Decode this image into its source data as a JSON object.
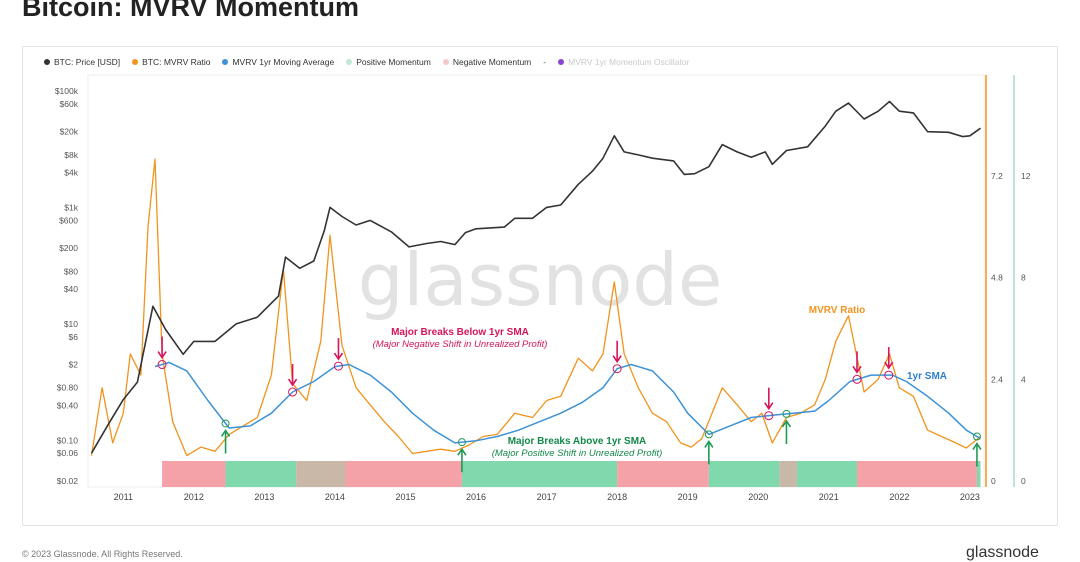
{
  "title": "Bitcoin: MVRV Momentum",
  "legend": [
    {
      "label": "BTC: Price [USD]",
      "color": "#333333",
      "faded": false
    },
    {
      "label": "BTC: MVRV Ratio",
      "color": "#f2931e",
      "faded": false
    },
    {
      "label": "MVRV 1yr Moving Average",
      "color": "#3d92d8",
      "faded": false
    },
    {
      "label": "Positive Momentum",
      "color": "#bfe8d5",
      "faded": false
    },
    {
      "label": "Negative Momentum",
      "color": "#f6c9cd",
      "faded": false
    },
    {
      "label": "-",
      "color": "",
      "faded": false
    },
    {
      "label": "MVRV 1yr Momentum Oscillator",
      "color": "#8a45d6",
      "faded": true
    }
  ],
  "footer": {
    "copyright": "© 2023 Glassnode. All Rights Reserved.",
    "brand": "glassnode"
  },
  "watermark": "glassnode",
  "chart_data": {
    "type": "line",
    "x_ticks": [
      "2011",
      "2012",
      "2013",
      "2014",
      "2015",
      "2016",
      "2017",
      "2018",
      "2019",
      "2020",
      "2021",
      "2022",
      "2023"
    ],
    "y_left_ticks": [
      "$100k",
      "$60k",
      "$20k",
      "$8k",
      "$4k",
      "$1k",
      "$600",
      "$200",
      "$80",
      "$40",
      "$10",
      "$6",
      "$2",
      "$0.80",
      "$0.40",
      "$0.10",
      "$0.06",
      "$0.02"
    ],
    "y_left_scale": "log",
    "y_right_ticks": [
      "7.2",
      "4.8",
      "2.4",
      "0"
    ],
    "y_right2_ticks": [
      "12",
      "8",
      "4",
      "0"
    ],
    "series": [
      {
        "name": "BTC: Price [USD]",
        "color": "#333333",
        "points": [
          [
            2010.55,
            0.06
          ],
          [
            2010.8,
            0.2
          ],
          [
            2011.0,
            0.5
          ],
          [
            2011.2,
            1
          ],
          [
            2011.42,
            20
          ],
          [
            2011.6,
            8
          ],
          [
            2011.85,
            3
          ],
          [
            2012.0,
            5
          ],
          [
            2012.3,
            5
          ],
          [
            2012.6,
            10
          ],
          [
            2012.9,
            13
          ],
          [
            2013.2,
            30
          ],
          [
            2013.3,
            140
          ],
          [
            2013.5,
            90
          ],
          [
            2013.7,
            120
          ],
          [
            2013.85,
            400
          ],
          [
            2013.93,
            1000
          ],
          [
            2014.1,
            700
          ],
          [
            2014.3,
            500
          ],
          [
            2014.5,
            600
          ],
          [
            2014.8,
            380
          ],
          [
            2015.05,
            210
          ],
          [
            2015.3,
            240
          ],
          [
            2015.5,
            260
          ],
          [
            2015.7,
            230
          ],
          [
            2015.85,
            370
          ],
          [
            2016.0,
            430
          ],
          [
            2016.4,
            460
          ],
          [
            2016.55,
            650
          ],
          [
            2016.8,
            650
          ],
          [
            2017.0,
            1000
          ],
          [
            2017.2,
            1100
          ],
          [
            2017.45,
            2500
          ],
          [
            2017.65,
            4200
          ],
          [
            2017.8,
            7000
          ],
          [
            2017.96,
            17000
          ],
          [
            2018.1,
            9000
          ],
          [
            2018.3,
            8000
          ],
          [
            2018.5,
            7000
          ],
          [
            2018.8,
            6300
          ],
          [
            2018.95,
            3700
          ],
          [
            2019.1,
            3800
          ],
          [
            2019.3,
            5000
          ],
          [
            2019.49,
            12000
          ],
          [
            2019.7,
            9000
          ],
          [
            2019.9,
            7300
          ],
          [
            2020.1,
            9000
          ],
          [
            2020.2,
            5500
          ],
          [
            2020.4,
            9500
          ],
          [
            2020.7,
            11000
          ],
          [
            2020.95,
            25000
          ],
          [
            2021.1,
            45000
          ],
          [
            2021.28,
            62000
          ],
          [
            2021.5,
            33000
          ],
          [
            2021.7,
            45000
          ],
          [
            2021.86,
            66000
          ],
          [
            2022.0,
            45000
          ],
          [
            2022.2,
            42000
          ],
          [
            2022.4,
            20000
          ],
          [
            2022.7,
            19500
          ],
          [
            2022.9,
            16500
          ],
          [
            2023.0,
            17000
          ],
          [
            2023.15,
            23000
          ]
        ]
      },
      {
        "name": "BTC: MVRV Ratio",
        "color": "#f2931e",
        "points": [
          [
            2010.55,
            0.6
          ],
          [
            2010.7,
            2.2
          ],
          [
            2010.85,
            0.9
          ],
          [
            2011.0,
            1.6
          ],
          [
            2011.1,
            3.0
          ],
          [
            2011.25,
            2.5
          ],
          [
            2011.35,
            6.0
          ],
          [
            2011.45,
            7.6
          ],
          [
            2011.55,
            3.0
          ],
          [
            2011.7,
            1.4
          ],
          [
            2011.9,
            0.6
          ],
          [
            2012.1,
            0.8
          ],
          [
            2012.3,
            0.7
          ],
          [
            2012.5,
            1.1
          ],
          [
            2012.7,
            1.3
          ],
          [
            2012.9,
            1.5
          ],
          [
            2013.1,
            2.5
          ],
          [
            2013.27,
            5.0
          ],
          [
            2013.4,
            2.3
          ],
          [
            2013.6,
            1.9
          ],
          [
            2013.8,
            3.3
          ],
          [
            2013.93,
            5.8
          ],
          [
            2014.1,
            3.2
          ],
          [
            2014.3,
            2.2
          ],
          [
            2014.5,
            1.8
          ],
          [
            2014.7,
            1.4
          ],
          [
            2014.9,
            1.05
          ],
          [
            2015.1,
            0.65
          ],
          [
            2015.3,
            0.7
          ],
          [
            2015.5,
            0.75
          ],
          [
            2015.7,
            0.7
          ],
          [
            2015.9,
            0.85
          ],
          [
            2016.1,
            1.05
          ],
          [
            2016.3,
            1.1
          ],
          [
            2016.55,
            1.6
          ],
          [
            2016.8,
            1.5
          ],
          [
            2017.0,
            1.9
          ],
          [
            2017.2,
            2.0
          ],
          [
            2017.45,
            2.9
          ],
          [
            2017.65,
            2.6
          ],
          [
            2017.8,
            3.0
          ],
          [
            2017.96,
            4.7
          ],
          [
            2018.1,
            3.0
          ],
          [
            2018.3,
            2.2
          ],
          [
            2018.5,
            1.6
          ],
          [
            2018.7,
            1.4
          ],
          [
            2018.9,
            0.9
          ],
          [
            2019.05,
            0.8
          ],
          [
            2019.2,
            1.0
          ],
          [
            2019.49,
            2.2
          ],
          [
            2019.7,
            1.8
          ],
          [
            2019.9,
            1.4
          ],
          [
            2020.05,
            1.6
          ],
          [
            2020.2,
            0.9
          ],
          [
            2020.4,
            1.5
          ],
          [
            2020.6,
            1.6
          ],
          [
            2020.8,
            1.8
          ],
          [
            2020.95,
            2.4
          ],
          [
            2021.1,
            3.3
          ],
          [
            2021.28,
            3.9
          ],
          [
            2021.5,
            2.1
          ],
          [
            2021.7,
            2.4
          ],
          [
            2021.86,
            3.0
          ],
          [
            2022.0,
            2.2
          ],
          [
            2022.2,
            2.0
          ],
          [
            2022.4,
            1.2
          ],
          [
            2022.6,
            1.05
          ],
          [
            2022.8,
            0.9
          ],
          [
            2022.95,
            0.78
          ],
          [
            2023.15,
            1.05
          ]
        ]
      },
      {
        "name": "MVRV 1yr Moving Average",
        "color": "#3d92d8",
        "points": [
          [
            2011.45,
            2.7
          ],
          [
            2011.65,
            2.8
          ],
          [
            2011.9,
            2.6
          ],
          [
            2012.2,
            1.9
          ],
          [
            2012.5,
            1.25
          ],
          [
            2012.8,
            1.3
          ],
          [
            2013.1,
            1.6
          ],
          [
            2013.4,
            2.1
          ],
          [
            2013.7,
            2.35
          ],
          [
            2014.0,
            2.7
          ],
          [
            2014.2,
            2.75
          ],
          [
            2014.5,
            2.5
          ],
          [
            2014.8,
            2.1
          ],
          [
            2015.1,
            1.6
          ],
          [
            2015.4,
            1.2
          ],
          [
            2015.7,
            0.9
          ],
          [
            2016.0,
            0.95
          ],
          [
            2016.3,
            1.05
          ],
          [
            2016.6,
            1.2
          ],
          [
            2016.9,
            1.4
          ],
          [
            2017.2,
            1.6
          ],
          [
            2017.5,
            1.85
          ],
          [
            2017.8,
            2.2
          ],
          [
            2018.0,
            2.65
          ],
          [
            2018.2,
            2.75
          ],
          [
            2018.5,
            2.6
          ],
          [
            2018.8,
            2.1
          ],
          [
            2019.0,
            1.6
          ],
          [
            2019.3,
            1.1
          ],
          [
            2019.6,
            1.3
          ],
          [
            2019.9,
            1.5
          ],
          [
            2020.2,
            1.55
          ],
          [
            2020.5,
            1.6
          ],
          [
            2020.8,
            1.65
          ],
          [
            2021.0,
            1.9
          ],
          [
            2021.3,
            2.35
          ],
          [
            2021.6,
            2.5
          ],
          [
            2021.9,
            2.5
          ],
          [
            2022.1,
            2.35
          ],
          [
            2022.4,
            2.0
          ],
          [
            2022.7,
            1.6
          ],
          [
            2022.95,
            1.2
          ],
          [
            2023.15,
            1.0
          ]
        ]
      }
    ],
    "momentum_bar": [
      {
        "from": 2011.55,
        "to": 2012.45,
        "state": "negative"
      },
      {
        "from": 2012.45,
        "to": 2013.45,
        "state": "positive"
      },
      {
        "from": 2013.45,
        "to": 2014.15,
        "state": "mixed"
      },
      {
        "from": 2014.15,
        "to": 2015.8,
        "state": "negative"
      },
      {
        "from": 2015.8,
        "to": 2018.0,
        "state": "positive"
      },
      {
        "from": 2018.0,
        "to": 2019.3,
        "state": "negative"
      },
      {
        "from": 2019.3,
        "to": 2020.3,
        "state": "positive"
      },
      {
        "from": 2020.3,
        "to": 2020.55,
        "state": "mixed"
      },
      {
        "from": 2020.55,
        "to": 2021.4,
        "state": "positive"
      },
      {
        "from": 2021.4,
        "to": 2023.1,
        "state": "negative"
      },
      {
        "from": 2023.1,
        "to": 2023.15,
        "state": "positive"
      }
    ],
    "annotations": {
      "neg_title": "Major Breaks Below 1yr SMA",
      "neg_sub": "(Major Negative Shift in Unrealized Profit)",
      "pos_title": "Major Breaks Above 1yr SMA",
      "pos_sub": "(Major Positive Shift in Unrealized Profit)",
      "mvrv_label": "MVRV Ratio",
      "sma_label": "1yr SMA",
      "down_arrows": [
        2011.55,
        2013.4,
        2014.05,
        2018.0,
        2020.15,
        2021.4,
        2021.85
      ],
      "up_arrows": [
        2012.45,
        2015.8,
        2019.3,
        2020.4,
        2023.1
      ]
    }
  }
}
